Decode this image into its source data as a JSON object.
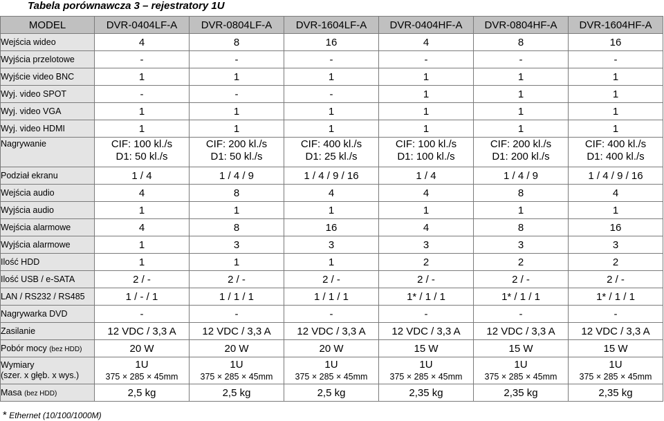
{
  "title": "Tabela porównawcza 3 – rejestratory 1U",
  "header": [
    "MODEL",
    "DVR-0404LF-A",
    "DVR-0804LF-A",
    "DVR-1604LF-A",
    "DVR-0404HF-A",
    "DVR-0804HF-A",
    "DVR-1604HF-A"
  ],
  "rows": [
    {
      "label": "Wejścia wideo",
      "values": [
        "4",
        "8",
        "16",
        "4",
        "8",
        "16"
      ]
    },
    {
      "label": "Wyjścia przelotowe",
      "values": [
        "-",
        "-",
        "-",
        "-",
        "-",
        "-"
      ]
    },
    {
      "label": "Wyjście video BNC",
      "values": [
        "1",
        "1",
        "1",
        "1",
        "1",
        "1"
      ]
    },
    {
      "label": "Wyj. video SPOT",
      "values": [
        "-",
        "-",
        "-",
        "1",
        "1",
        "1"
      ]
    },
    {
      "label": "Wyj. video VGA",
      "values": [
        "1",
        "1",
        "1",
        "1",
        "1",
        "1"
      ]
    },
    {
      "label": "Wyj. video HDMI",
      "values": [
        "1",
        "1",
        "1",
        "1",
        "1",
        "1"
      ]
    }
  ],
  "recording": {
    "label": "Nagrywanie",
    "values": [
      [
        "CIF: 100 kl./s",
        "D1: 50 kl./s"
      ],
      [
        "CIF: 200 kl./s",
        "D1: 50 kl./s"
      ],
      [
        "CIF: 400 kl./s",
        "D1: 25 kl./s"
      ],
      [
        "CIF: 100 kl./s",
        "D1: 100 kl./s"
      ],
      [
        "CIF: 200 kl./s",
        "D1: 200 kl./s"
      ],
      [
        "CIF: 400 kl./s",
        "D1: 400 kl./s"
      ]
    ]
  },
  "rows2": [
    {
      "label": "Podział ekranu",
      "values": [
        "1 / 4",
        "1 / 4 / 9",
        "1 / 4 / 9 / 16",
        "1 / 4",
        "1 / 4 / 9",
        "1 / 4 / 9 / 16"
      ]
    },
    {
      "label": "Wejścia audio",
      "values": [
        "4",
        "8",
        "4",
        "4",
        "8",
        "4"
      ]
    },
    {
      "label": "Wyjścia audio",
      "values": [
        "1",
        "1",
        "1",
        "1",
        "1",
        "1"
      ]
    },
    {
      "label": "Wejścia alarmowe",
      "values": [
        "4",
        "8",
        "16",
        "4",
        "8",
        "16"
      ]
    },
    {
      "label": "Wyjścia alarmowe",
      "values": [
        "1",
        "3",
        "3",
        "3",
        "3",
        "3"
      ]
    },
    {
      "label": "Ilość HDD",
      "values": [
        "1",
        "1",
        "1",
        "2",
        "2",
        "2"
      ]
    },
    {
      "label": "Ilość USB / e-SATA",
      "values": [
        "2 / -",
        "2 / -",
        "2 / -",
        "2 / -",
        "2 / -",
        "2 / -"
      ]
    },
    {
      "label": "LAN / RS232 / RS485",
      "values": [
        "1 / - / 1",
        "1 / 1 / 1",
        "1 / 1 / 1",
        "1* / 1 / 1",
        "1* / 1 / 1",
        "1* / 1 / 1"
      ]
    },
    {
      "label": "Nagrywarka DVD",
      "values": [
        "-",
        "-",
        "-",
        "-",
        "-",
        "-"
      ]
    },
    {
      "label": "Zasilanie",
      "values": [
        "12 VDC / 3,3 A",
        "12 VDC / 3,3 A",
        "12 VDC / 3,3 A",
        "12 VDC / 3,3 A",
        "12 VDC / 3,3 A",
        "12 VDC / 3,3 A"
      ]
    }
  ],
  "power_use": {
    "label": "Pobór mocy",
    "note": "(bez HDD)",
    "values": [
      "20 W",
      "20 W",
      "20 W",
      "15 W",
      "15 W",
      "15 W"
    ]
  },
  "dimensions": {
    "label1": "Wymiary",
    "label2": "(szer. x głęb. x wys.)",
    "values": [
      [
        "1U",
        "375 × 285 × 45mm"
      ],
      [
        "1U",
        "375 × 285 × 45mm"
      ],
      [
        "1U",
        "375 × 285 × 45mm"
      ],
      [
        "1U",
        "375 × 285 × 45mm"
      ],
      [
        "1U",
        "375 × 285 × 45mm"
      ],
      [
        "1U",
        "375 × 285 × 45mm"
      ]
    ]
  },
  "mass": {
    "label": "Masa",
    "note": "(bez HDD)",
    "values": [
      "2,5 kg",
      "2,5 kg",
      "2,5 kg",
      "2,35 kg",
      "2,35 kg",
      "2,35 kg"
    ]
  },
  "footnote": {
    "star": "*",
    "text": "Ethernet (10/100/1000M)"
  }
}
